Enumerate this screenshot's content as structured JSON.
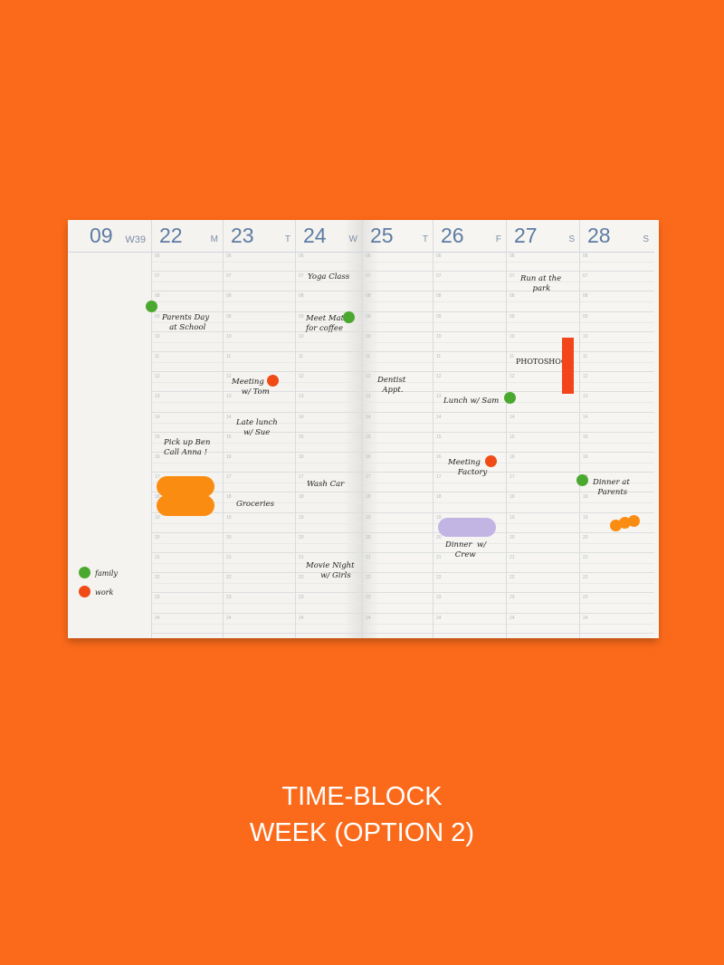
{
  "planner": {
    "month": "09",
    "week": "W39",
    "days": [
      {
        "num": "22",
        "letter": "M"
      },
      {
        "num": "23",
        "letter": "T"
      },
      {
        "num": "24",
        "letter": "W"
      },
      {
        "num": "25",
        "letter": "T"
      },
      {
        "num": "26",
        "letter": "F"
      },
      {
        "num": "27",
        "letter": "S"
      },
      {
        "num": "28",
        "letter": "S"
      }
    ],
    "hours": [
      "06",
      "07",
      "08",
      "09",
      "10",
      "11",
      "12",
      "13",
      "14",
      "15",
      "16",
      "17",
      "18",
      "19",
      "20",
      "21",
      "22",
      "23",
      "24"
    ],
    "notes": {
      "parents_day": "Parents Day\n   at School",
      "yoga": "Yoga Class",
      "meet_matt": "Meet Matt\nfor coffee",
      "meeting_tom": "Meeting\n    w/ Tom",
      "late_lunch": "Late lunch\n   w/ Sue",
      "pick_up": "Pick up Ben\nCall Anna !",
      "groceries": "Groceries",
      "wash_car": "Wash Car",
      "movie_night": "Movie Night\n      w/ Girls",
      "run": "Run at the\n     park",
      "photoshoot": "PHOTOSHOOT",
      "dentist": "Dentist\n  Appt.",
      "lunch_sam": "Lunch w/ Sam",
      "meeting_factory": "Meeting\n    Factory",
      "dinner_crew": "Dinner  w/\n    Crew",
      "dinner_parents": "Dinner at\n  Parents"
    },
    "legend": [
      {
        "label": "family",
        "color": "#4aa82e"
      },
      {
        "label": "work",
        "color": "#f04a16"
      }
    ]
  },
  "colors": {
    "background": "#fb6a1a",
    "family": "#4aa82e",
    "work": "#f04a16",
    "orange_sticker": "#fb8c12",
    "lavender_sticker": "#c3b5e3",
    "photoshoot_bar": "#f2451a"
  },
  "caption": {
    "line1": "TIME-BLOCK",
    "line2": "WEEK (OPTION 2)"
  }
}
